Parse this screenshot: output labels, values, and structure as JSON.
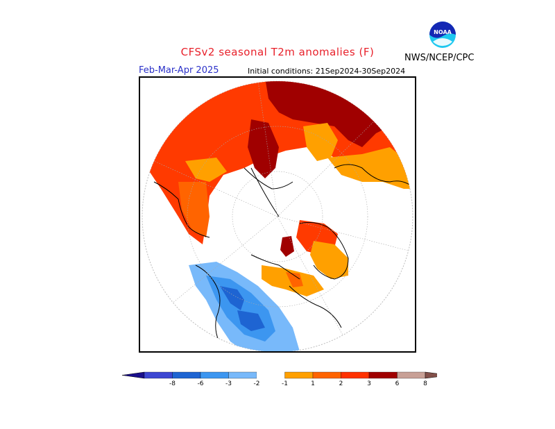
{
  "header": {
    "title": "CFSv2 seasonal T2m anomalies (F)",
    "agency": "NWS/NCEP/CPC",
    "period": "Feb-Mar-Apr 2025",
    "initial_conditions": "Initial conditions: 21Sep2024-30Sep2024",
    "logo_text": "NOAA"
  },
  "map": {
    "projection": "polar stereographic (north pole)",
    "variable": "2m temperature anomaly",
    "units": "F"
  },
  "legend": {
    "labels": [
      "-8",
      "-6",
      "-3",
      "-2",
      "-1",
      "1",
      "2",
      "3",
      "6",
      "8"
    ],
    "bins": [
      {
        "range": "< -8",
        "color": "#1a0f8c"
      },
      {
        "range": "-8 to -6",
        "color": "#3c46d2"
      },
      {
        "range": "-6 to -3",
        "color": "#1e64d2"
      },
      {
        "range": "-3 to -2",
        "color": "#3c96f0"
      },
      {
        "range": "-2 to -1",
        "color": "#78b9fa"
      },
      {
        "range": "-1 to 1",
        "color": "#ffffff"
      },
      {
        "range": "1 to 2",
        "color": "#ffa000"
      },
      {
        "range": "2 to 3",
        "color": "#ff6400"
      },
      {
        "range": "3 to 6",
        "color": "#ff3200"
      },
      {
        "range": "6 to 8",
        "color": "#a00000"
      },
      {
        "range": "8 to 10",
        "color": "#c8a096"
      },
      {
        "range": "> 10",
        "color": "#82504a"
      }
    ]
  }
}
